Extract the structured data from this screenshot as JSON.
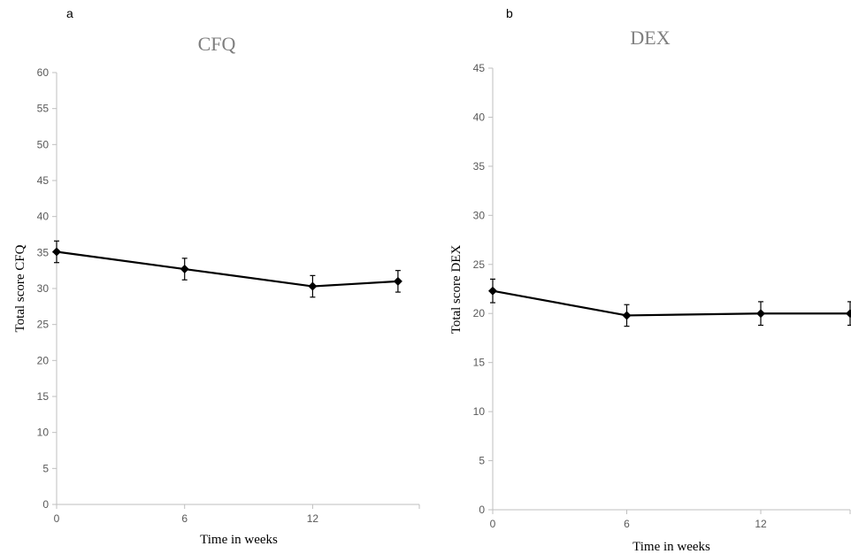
{
  "chart_data": [
    {
      "panel": "a",
      "type": "line",
      "title": "CFQ",
      "xlabel": "Time in weeks",
      "ylabel": "Total score CFQ",
      "xlim": [
        0,
        17
      ],
      "ylim": [
        0,
        60
      ],
      "x_ticks": [
        0,
        6,
        12
      ],
      "y_ticks": [
        0,
        5,
        10,
        15,
        20,
        25,
        30,
        35,
        40,
        45,
        50,
        55,
        60
      ],
      "grid": false,
      "series": [
        {
          "x": [
            0,
            6,
            12,
            16
          ],
          "values": [
            35.1,
            32.7,
            30.3,
            31.0
          ],
          "error": [
            1.5,
            1.5,
            1.5,
            1.5
          ]
        }
      ]
    },
    {
      "panel": "b",
      "type": "line",
      "title": "DEX",
      "xlabel": "Time in weeks",
      "ylabel": "Total score DEX",
      "xlim": [
        0,
        16
      ],
      "ylim": [
        0,
        45
      ],
      "x_ticks": [
        0,
        6,
        12
      ],
      "y_ticks": [
        0,
        5,
        10,
        15,
        20,
        25,
        30,
        35,
        40,
        45
      ],
      "grid": false,
      "series": [
        {
          "x": [
            0,
            6,
            12,
            16
          ],
          "values": [
            22.3,
            19.8,
            20.0,
            20.0
          ],
          "error": [
            1.2,
            1.1,
            1.2,
            1.2
          ]
        }
      ]
    }
  ]
}
